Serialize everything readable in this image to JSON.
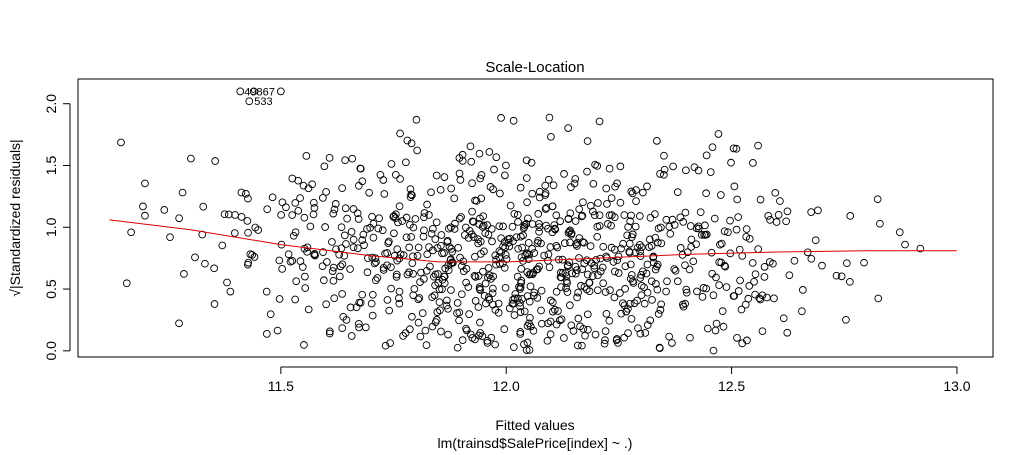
{
  "chart_data": {
    "type": "scatter",
    "title": "Scale-Location",
    "xlabel": "Fitted values",
    "subtitle": "lm(trainsd$SalePrice[index] ~ .)",
    "ylabel": "√|Standardized residuals|",
    "xlim": [
      11.05,
      13.08
    ],
    "ylim": [
      -0.05,
      2.2
    ],
    "x_ticks": [
      11.5,
      12.0,
      12.5,
      13.0
    ],
    "x_tick_labels": [
      "11.5",
      "12.0",
      "12.5",
      "13.0"
    ],
    "y_ticks": [
      0.0,
      0.5,
      1.0,
      1.5,
      2.0
    ],
    "y_tick_labels": [
      "0.0",
      "0.5",
      "1.0",
      "1.5",
      "2.0"
    ],
    "grid": false,
    "point_style": "open-circle",
    "point_color": "#000000",
    "smoother_color": "#dd0000",
    "labeled_points": [
      {
        "label": "49",
        "x": 11.41,
        "y": 2.1
      },
      {
        "label": "867",
        "x": 11.44,
        "y": 2.1
      },
      {
        "label": "533",
        "x": 11.43,
        "y": 2.02
      }
    ],
    "extra_points": [
      {
        "x": 11.5,
        "y": 2.1
      }
    ],
    "smoother": {
      "x": [
        11.12,
        11.3,
        11.5,
        11.7,
        11.85,
        12.0,
        12.2,
        12.4,
        12.6,
        12.8,
        13.0
      ],
      "y": [
        1.06,
        0.98,
        0.86,
        0.77,
        0.72,
        0.72,
        0.75,
        0.78,
        0.8,
        0.81,
        0.81
      ]
    },
    "cloud": {
      "n": 950,
      "seed": 20240521,
      "x_mean": 12.02,
      "x_sd": 0.33,
      "x_min": 11.12,
      "x_max": 13.0
    }
  }
}
